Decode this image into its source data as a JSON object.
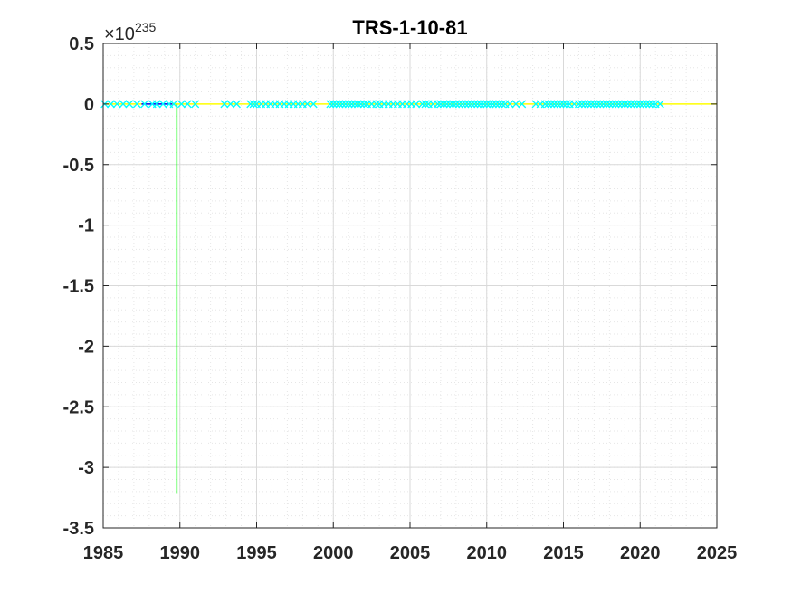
{
  "chart_data": {
    "type": "scatter",
    "title": "TRS-1-10-81",
    "xlabel": "",
    "ylabel": "",
    "xlim": [
      1985,
      2025
    ],
    "ylim": [
      -3.5,
      0.5
    ],
    "y_exponent_label": "×10",
    "y_exponent": "235",
    "x_ticks": [
      "1985",
      "1990",
      "1995",
      "2000",
      "2005",
      "2010",
      "2015",
      "2020",
      "2025"
    ],
    "y_ticks": [
      "0.5",
      "0",
      "-0.5",
      "-1",
      "-1.5",
      "-2",
      "-2.5",
      "-3",
      "-3.5"
    ],
    "grid": true,
    "minor_grid": true,
    "colors": {
      "markers": "#00ffff",
      "trend": "#ffff00",
      "spike": "#00ff00",
      "short_segment": "#0000ff",
      "grid_major": "#d9d9d9",
      "grid_minor": "#e6e6e6"
    },
    "series": [
      {
        "marker": "x",
        "points": [
          [
            1985.1,
            0
          ],
          [
            1985.5,
            0
          ],
          [
            1985.9,
            0
          ],
          [
            1986.3,
            0
          ],
          [
            1986.7,
            0
          ],
          [
            1987.2,
            0
          ],
          [
            1987.7,
            0
          ],
          [
            1988.2,
            0
          ],
          [
            1988.5,
            0
          ],
          [
            1988.9,
            0
          ],
          [
            1989.3,
            0
          ],
          [
            1989.6,
            0
          ],
          [
            1990.1,
            0
          ],
          [
            1990.5,
            0
          ],
          [
            1991.0,
            0
          ],
          [
            1992.9,
            0
          ],
          [
            1993.3,
            0
          ],
          [
            1993.7,
            0
          ],
          [
            1994.6,
            0
          ],
          [
            1994.8,
            0
          ],
          [
            1995.0,
            0
          ],
          [
            1995.3,
            0
          ],
          [
            1995.6,
            0
          ],
          [
            1995.9,
            0
          ],
          [
            1996.2,
            0
          ],
          [
            1996.5,
            0
          ],
          [
            1996.8,
            0
          ],
          [
            1997.1,
            0
          ],
          [
            1997.4,
            0
          ],
          [
            1997.7,
            0
          ],
          [
            1998.0,
            0
          ],
          [
            1998.3,
            0
          ],
          [
            1998.7,
            0
          ],
          [
            1999.8,
            0
          ],
          [
            2000.0,
            0
          ],
          [
            2000.2,
            0
          ],
          [
            2000.4,
            0
          ],
          [
            2000.6,
            0
          ],
          [
            2000.8,
            0
          ],
          [
            2001.0,
            0
          ],
          [
            2001.2,
            0
          ],
          [
            2001.4,
            0
          ],
          [
            2001.6,
            0
          ],
          [
            2001.8,
            0
          ],
          [
            2002.0,
            0
          ],
          [
            2002.2,
            0
          ],
          [
            2002.5,
            0
          ],
          [
            2002.8,
            0
          ],
          [
            2003.0,
            0
          ],
          [
            2003.3,
            0
          ],
          [
            2003.6,
            0
          ],
          [
            2003.9,
            0
          ],
          [
            2004.2,
            0
          ],
          [
            2004.5,
            0
          ],
          [
            2004.8,
            0
          ],
          [
            2005.1,
            0
          ],
          [
            2005.4,
            0
          ],
          [
            2005.8,
            0
          ],
          [
            2006.0,
            0
          ],
          [
            2006.2,
            0
          ],
          [
            2006.5,
            0
          ],
          [
            2006.8,
            0
          ],
          [
            2007.0,
            0
          ],
          [
            2007.2,
            0
          ],
          [
            2007.4,
            0
          ],
          [
            2007.6,
            0
          ],
          [
            2007.8,
            0
          ],
          [
            2008.0,
            0
          ],
          [
            2008.2,
            0
          ],
          [
            2008.4,
            0
          ],
          [
            2008.6,
            0
          ],
          [
            2008.8,
            0
          ],
          [
            2009.0,
            0
          ],
          [
            2009.2,
            0
          ],
          [
            2009.4,
            0
          ],
          [
            2009.6,
            0
          ],
          [
            2009.8,
            0
          ],
          [
            2010.0,
            0
          ],
          [
            2010.2,
            0
          ],
          [
            2010.4,
            0
          ],
          [
            2010.6,
            0
          ],
          [
            2010.8,
            0
          ],
          [
            2011.0,
            0
          ],
          [
            2011.2,
            0
          ],
          [
            2011.5,
            0
          ],
          [
            2011.9,
            0
          ],
          [
            2012.3,
            0
          ],
          [
            2013.2,
            0
          ],
          [
            2013.5,
            0
          ],
          [
            2013.8,
            0
          ],
          [
            2014.0,
            0
          ],
          [
            2014.2,
            0
          ],
          [
            2014.4,
            0
          ],
          [
            2014.6,
            0
          ],
          [
            2014.8,
            0
          ],
          [
            2015.0,
            0
          ],
          [
            2015.2,
            0
          ],
          [
            2015.4,
            0
          ],
          [
            2015.7,
            0
          ],
          [
            2016.0,
            0
          ],
          [
            2016.2,
            0
          ],
          [
            2016.4,
            0
          ],
          [
            2016.6,
            0
          ],
          [
            2016.8,
            0
          ],
          [
            2017.0,
            0
          ],
          [
            2017.2,
            0
          ],
          [
            2017.4,
            0
          ],
          [
            2017.6,
            0
          ],
          [
            2017.8,
            0
          ],
          [
            2018.0,
            0
          ],
          [
            2018.2,
            0
          ],
          [
            2018.4,
            0
          ],
          [
            2018.6,
            0
          ],
          [
            2018.8,
            0
          ],
          [
            2019.0,
            0
          ],
          [
            2019.2,
            0
          ],
          [
            2019.4,
            0
          ],
          [
            2019.6,
            0
          ],
          [
            2019.8,
            0
          ],
          [
            2020.0,
            0
          ],
          [
            2020.2,
            0
          ],
          [
            2020.4,
            0
          ],
          [
            2020.6,
            0
          ],
          [
            2020.8,
            0
          ],
          [
            2021.0,
            0
          ],
          [
            2021.3,
            0
          ]
        ]
      },
      {
        "line": "trend",
        "points": [
          [
            1985,
            0
          ],
          [
            2025,
            0
          ]
        ]
      },
      {
        "line": "spike",
        "points": [
          [
            1989.8,
            0
          ],
          [
            1989.8,
            -3.22
          ]
        ]
      },
      {
        "line": "short_segment",
        "points": [
          [
            1987.5,
            0
          ],
          [
            1989.5,
            0
          ]
        ]
      }
    ]
  }
}
